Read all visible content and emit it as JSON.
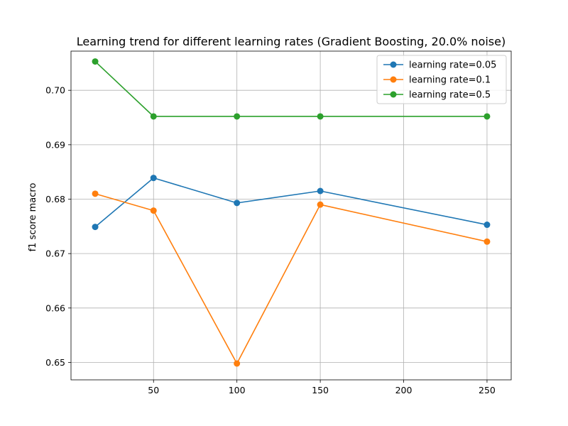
{
  "chart_data": {
    "type": "line",
    "title": "Learning trend for different learning rates (Gradient Boosting, 20.0% noise)",
    "xlabel": "",
    "ylabel": "f1 score macro",
    "x": [
      15,
      50,
      100,
      150,
      250
    ],
    "xlim": [
      0.5,
      264.5
    ],
    "ylim": [
      0.6468,
      0.7072
    ],
    "xticks": [
      50,
      100,
      150,
      200,
      250
    ],
    "yticks": [
      0.65,
      0.66,
      0.67,
      0.68,
      0.69,
      0.7
    ],
    "ytick_labels": [
      "0.65",
      "0.66",
      "0.67",
      "0.68",
      "0.69",
      "0.70"
    ],
    "grid": true,
    "legend_position": "top-right",
    "series": [
      {
        "name": "learning rate=0.05",
        "color": "#1f77b4",
        "values": [
          0.6749,
          0.6839,
          0.6793,
          0.6815,
          0.6753
        ]
      },
      {
        "name": "learning rate=0.1",
        "color": "#ff7f0e",
        "values": [
          0.681,
          0.6779,
          0.6498,
          0.679,
          0.6722
        ]
      },
      {
        "name": "learning rate=0.5",
        "color": "#2ca02c",
        "values": [
          0.7053,
          0.6952,
          0.6952,
          0.6952,
          0.6952
        ]
      }
    ]
  }
}
